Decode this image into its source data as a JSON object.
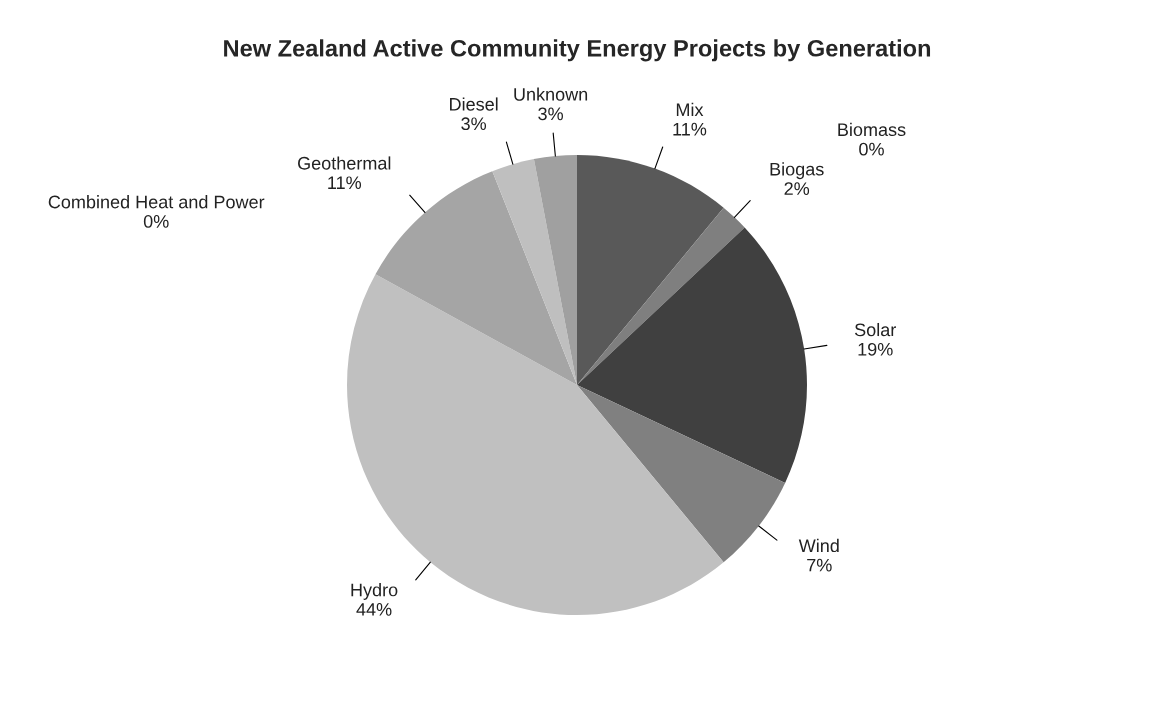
{
  "chart_data": {
    "type": "pie",
    "title": "New Zealand Active Community Energy Projects by Generation",
    "categories": [
      "Mix",
      "Biogas",
      "Biomass",
      "Solar",
      "Wind",
      "Hydro",
      "Combined Heat and Power",
      "Geothermal",
      "Diesel",
      "Unknown"
    ],
    "values": [
      11,
      2,
      0,
      19,
      7,
      44,
      0,
      11,
      3,
      3
    ],
    "colors": [
      "#595959",
      "#7f7f7f",
      "#6b6b6b",
      "#404040",
      "#808080",
      "#c0c0c0",
      "#d0d0d0",
      "#a5a5a5",
      "#bfbfbf",
      "#a0a0a0"
    ],
    "value_labels": [
      "11%",
      "2%",
      "0%",
      "19%",
      "7%",
      "44%",
      "0%",
      "11%",
      "3%",
      "3%"
    ],
    "legend": false
  }
}
